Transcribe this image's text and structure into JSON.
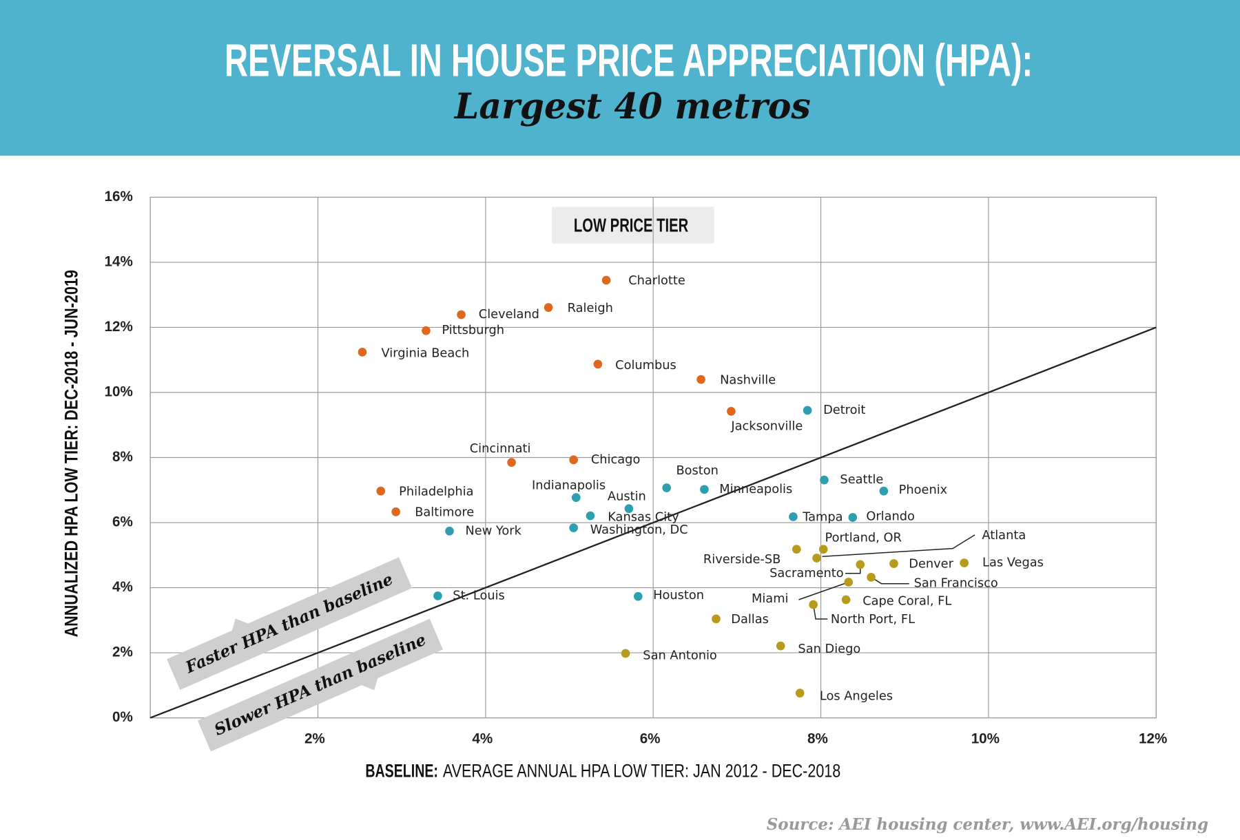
{
  "chart_data": {
    "type": "scatter",
    "title": "REVERSAL IN HOUSE PRICE APPRECIATION (HPA):",
    "subtitle": "Largest 40 metros",
    "panel_label": "LOW PRICE TIER",
    "x_label_lead": "BASELINE:",
    "x_label": "AVERAGE ANNUAL HPA LOW TIER: JAN 2012 - DEC-2018",
    "y_label": "ANNUALIZED HPA LOW TIER: DEC-2018 - JUN-2019",
    "annotations": [
      "Faster HPA than baseline",
      "Slower HPA than baseline"
    ],
    "source": "Source: AEI housing center, www.AEI.org/housing",
    "xlim": [
      0,
      12
    ],
    "ylim": [
      0,
      16
    ],
    "xticks": [
      {
        "value": 2,
        "label": "2%"
      },
      {
        "value": 4,
        "label": "4%"
      },
      {
        "value": 6,
        "label": "6%"
      },
      {
        "value": 8,
        "label": "8%"
      },
      {
        "value": 10,
        "label": "10%"
      },
      {
        "value": 12,
        "label": "12%"
      }
    ],
    "yticks": [
      {
        "value": 0,
        "label": "0%"
      },
      {
        "value": 2,
        "label": "2%"
      },
      {
        "value": 4,
        "label": "4%"
      },
      {
        "value": 6,
        "label": "6%"
      },
      {
        "value": 8,
        "label": "8%"
      },
      {
        "value": 10,
        "label": "10%"
      },
      {
        "value": 12,
        "label": "12%"
      },
      {
        "value": 14,
        "label": "14%"
      },
      {
        "value": 16,
        "label": "16%"
      }
    ],
    "grid": true,
    "reference_line": {
      "x": [
        0,
        12
      ],
      "y": [
        0,
        12
      ],
      "color": "#222222"
    },
    "series": [
      {
        "color": "#e0671e",
        "labels": [
          "Charlotte",
          "Raleigh",
          "Cleveland",
          "Pittsburgh",
          "Virginia Beach",
          "Columbus",
          "Nashville",
          "Jacksonville",
          "Cincinnati",
          "Chicago",
          "Philadelphia",
          "Baltimore"
        ],
        "x": [
          5.44,
          4.75,
          3.71,
          3.29,
          2.53,
          5.34,
          6.57,
          6.93,
          4.31,
          5.05,
          2.75,
          2.93
        ],
        "values": [
          13.45,
          12.61,
          12.39,
          11.9,
          11.24,
          10.87,
          10.4,
          9.42,
          7.85,
          7.93,
          6.97,
          6.33
        ]
      },
      {
        "color": "#2e9fb0",
        "labels": [
          "Detroit",
          "Seattle",
          "Phoenix",
          "Boston",
          "Minneapolis",
          "Indianapolis",
          "Austin",
          "Kansas City",
          "Washington, DC",
          "New York",
          "Tampa",
          "Orlando",
          "St. Louis",
          "Houston"
        ],
        "x": [
          7.84,
          8.04,
          8.75,
          6.16,
          6.61,
          5.08,
          5.71,
          5.25,
          5.05,
          3.57,
          7.67,
          8.38,
          3.43,
          5.82
        ],
        "values": [
          9.45,
          7.31,
          6.97,
          7.07,
          7.02,
          6.77,
          6.43,
          6.21,
          5.84,
          5.74,
          6.18,
          6.16,
          3.75,
          3.73
        ]
      },
      {
        "color": "#b89a1c",
        "labels": [
          "Riverside-SB",
          "Portland, OR",
          "Atlanta",
          "Sacramento",
          "San Francisco",
          "Miami",
          "North Port, FL",
          "Denver",
          "Las Vegas",
          "Cape Coral, FL",
          "Dallas",
          "San Diego",
          "San Antonio",
          "Los Angeles"
        ],
        "x": [
          7.71,
          8.03,
          7.95,
          8.47,
          8.6,
          8.33,
          7.91,
          8.87,
          9.71,
          8.3,
          6.75,
          7.52,
          5.67,
          7.75
        ],
        "values": [
          5.18,
          5.18,
          4.91,
          4.71,
          4.32,
          4.17,
          3.48,
          4.74,
          4.76,
          3.63,
          3.04,
          2.21,
          1.98,
          0.76
        ]
      }
    ]
  }
}
